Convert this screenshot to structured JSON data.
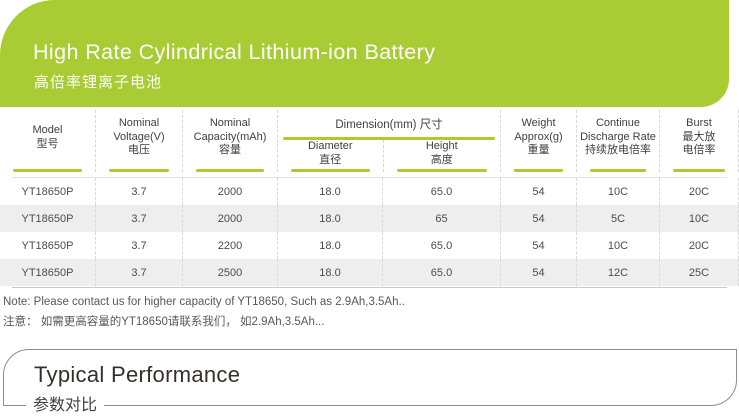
{
  "theme": {
    "green": "#a9cb33",
    "alt_row": "#eeeeee"
  },
  "banner": {
    "title": "High Rate Cylindrical Lithium-ion Battery",
    "subtitle": "高倍率锂离子电池"
  },
  "table": {
    "group_header": "Dimension(mm) 尺寸",
    "columns": [
      {
        "key": "model",
        "lines": [
          "Model",
          "型号"
        ]
      },
      {
        "key": "voltage",
        "lines": [
          "Nominal",
          "Voltage(V)",
          "电压"
        ]
      },
      {
        "key": "capacity",
        "lines": [
          "Nominal",
          "Capacity(mAh)",
          "容量"
        ]
      },
      {
        "key": "diameter",
        "lines": [
          "Diameter",
          "直径"
        ]
      },
      {
        "key": "height",
        "lines": [
          "Height",
          "高度"
        ]
      },
      {
        "key": "weight",
        "lines": [
          "Weight",
          "Approx(g)",
          "重量"
        ]
      },
      {
        "key": "discharge",
        "lines": [
          "Continue",
          "Discharge Rate",
          "持续放电倍率"
        ]
      },
      {
        "key": "burst",
        "lines": [
          "Burst",
          "最大放",
          "电倍率"
        ]
      }
    ],
    "rows": [
      [
        "YT18650P",
        "3.7",
        "2000",
        "18.0",
        "65.0",
        "54",
        "10C",
        "20C"
      ],
      [
        "YT18650P",
        "3.7",
        "2000",
        "18.0",
        "65",
        "54",
        "5C",
        "10C"
      ],
      [
        "YT18650P",
        "3.7",
        "2200",
        "18.0",
        "65.0",
        "54",
        "10C",
        "20C"
      ],
      [
        "YT18650P",
        "3.7",
        "2500",
        "18.0",
        "65.0",
        "54",
        "12C",
        "25C"
      ]
    ]
  },
  "notes": {
    "en": "Note: Please contact us for higher capacity of YT18650, Such as 2.9Ah,3.5Ah..",
    "zh": "注意： 如需更高容量的YT18650请联系我们， 如2.9Ah,3.5Ah..."
  },
  "section": {
    "title": "Typical Performance",
    "subtitle": "参数对比"
  }
}
